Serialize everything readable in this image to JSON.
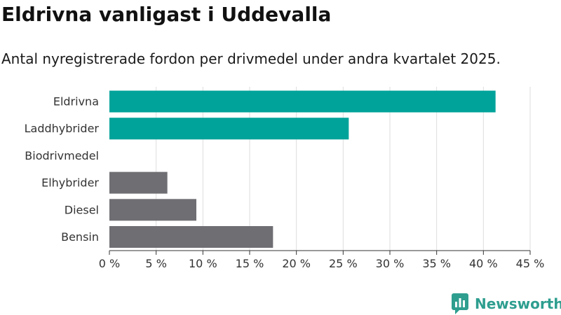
{
  "header": {
    "title": "Eldrivna vanligast i Uddevalla",
    "subtitle": "Antal nyregistrerade fordon per drivmedel under andra kvartalet 2025."
  },
  "brand": {
    "name": "Newsworthy",
    "icon": "newsworthy-logo-icon",
    "color": "#2e9e8f"
  },
  "chart_data": {
    "type": "bar",
    "orientation": "horizontal",
    "title": "",
    "xlabel": "",
    "ylabel": "",
    "categories": [
      "Eldrivna",
      "Laddhybrider",
      "Biodrivmedel",
      "Elhybrider",
      "Diesel",
      "Bensin"
    ],
    "values": [
      41.3,
      25.6,
      0,
      6.2,
      9.3,
      17.5
    ],
    "colors": [
      "#00a39a",
      "#00a39a",
      "#00a39a",
      "#6e6e73",
      "#6e6e73",
      "#6e6e73"
    ],
    "xlim": [
      0,
      45
    ],
    "xticks": [
      0,
      5,
      10,
      15,
      20,
      25,
      30,
      35,
      40,
      45
    ],
    "xtick_labels": [
      "0 %",
      "5 %",
      "10 %",
      "15 %",
      "20 %",
      "25 %",
      "30 %",
      "35 %",
      "40 %",
      "45 %"
    ],
    "grid": true,
    "legend": "none"
  }
}
